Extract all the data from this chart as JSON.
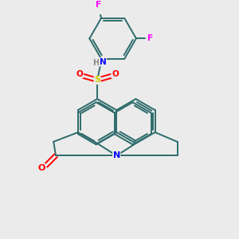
{
  "background_color": "#ebebeb",
  "atom_colors": {
    "C": "#2d6b6b",
    "N": "#0000ff",
    "O": "#ff0000",
    "S": "#cccc00",
    "F": "#ff00ff",
    "H": "#888888"
  },
  "bond_color": "#2d6b6b",
  "figsize": [
    3.0,
    3.0
  ],
  "dpi": 100,
  "lw": 1.4
}
